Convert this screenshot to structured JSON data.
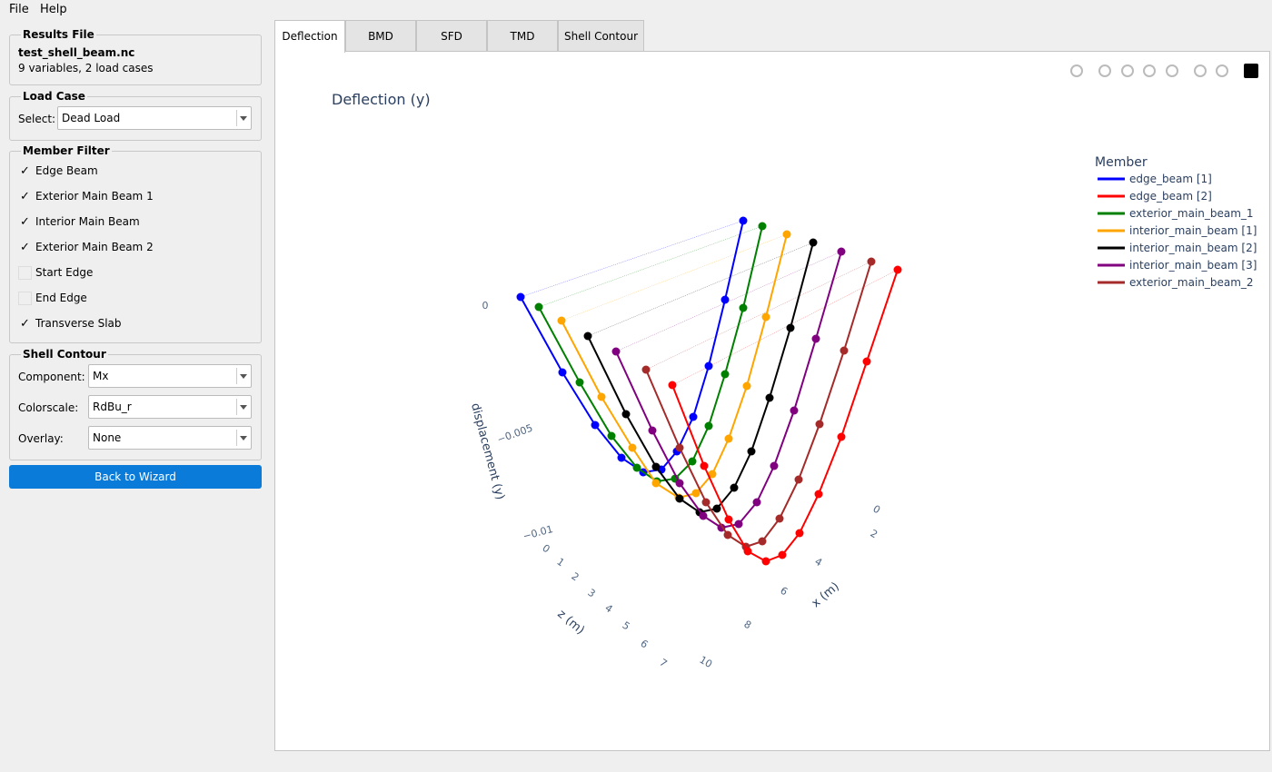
{
  "menu": [
    "File",
    "Help"
  ],
  "results_file": {
    "title": "Results File",
    "file": "test_shell_beam.nc",
    "summary": "9 variables, 2 load cases"
  },
  "load_case": {
    "title": "Load Case",
    "label": "Select:",
    "value": "Dead Load"
  },
  "member_filter": {
    "title": "Member Filter",
    "items": [
      {
        "label": "Edge Beam",
        "checked": true
      },
      {
        "label": "Exterior Main Beam 1",
        "checked": true
      },
      {
        "label": "Interior Main Beam",
        "checked": true
      },
      {
        "label": "Exterior Main Beam 2",
        "checked": true
      },
      {
        "label": "Start Edge",
        "checked": false
      },
      {
        "label": "End Edge",
        "checked": false
      },
      {
        "label": "Transverse Slab",
        "checked": true
      }
    ]
  },
  "shell_contour": {
    "title": "Shell Contour",
    "fields": [
      {
        "label": "Component:",
        "value": "Mx"
      },
      {
        "label": "Colorscale:",
        "value": "RdBu_r"
      },
      {
        "label": "Overlay:",
        "value": "None"
      }
    ]
  },
  "button": "Back to Wizard",
  "tabs": [
    "Deflection",
    "BMD",
    "SFD",
    "TMD",
    "Shell Contour"
  ],
  "active_tab": 0,
  "plot": {
    "title": "Deflection (y)",
    "legend_title": "Member",
    "legend": [
      {
        "name": "edge_beam [1]",
        "color": "#0000ff"
      },
      {
        "name": "edge_beam [2]",
        "color": "#ff0000"
      },
      {
        "name": "exterior_main_beam_1",
        "color": "#008000"
      },
      {
        "name": "interior_main_beam [1]",
        "color": "#ffa500"
      },
      {
        "name": "interior_main_beam [2]",
        "color": "#000000"
      },
      {
        "name": "interior_main_beam [3]",
        "color": "#800080"
      },
      {
        "name": "exterior_main_beam_2",
        "color": "#a52a2a"
      }
    ],
    "y_axis": {
      "title": "displacement (y)",
      "ticks": [
        "0",
        "−0.005",
        "−0.01"
      ]
    },
    "z_axis": {
      "title": "z (m)",
      "ticks": [
        "0",
        "1",
        "2",
        "3",
        "4",
        "5",
        "6",
        "7"
      ]
    },
    "x_axis": {
      "title": "x (m)",
      "ticks": [
        "0",
        "2",
        "4",
        "6",
        "8",
        "10"
      ]
    }
  }
}
